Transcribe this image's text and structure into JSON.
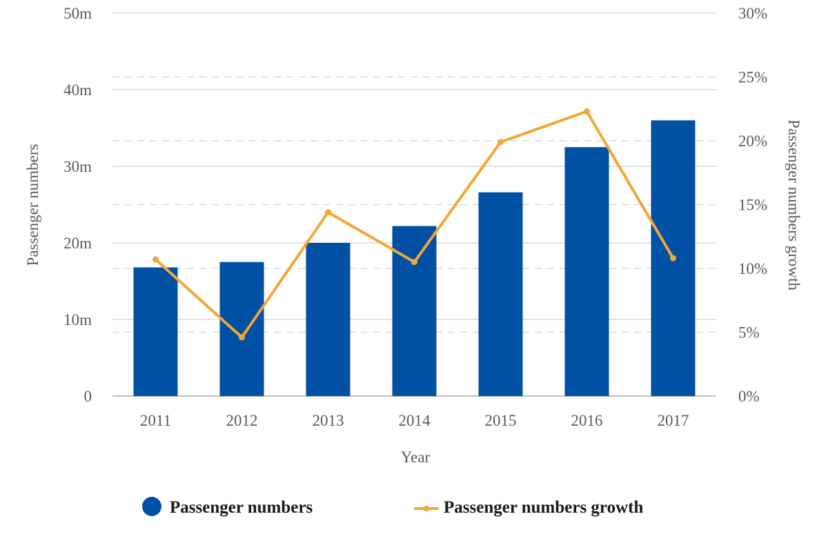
{
  "colors": {
    "bar": "#0050a4",
    "line": "#f5a533",
    "grid_solid": "#d9d9d9",
    "grid_dashed": "#d9d9d9",
    "axis": "#bfbfbf",
    "text": "#595959"
  },
  "chart_data": {
    "type": "bar",
    "categories": [
      "2011",
      "2012",
      "2013",
      "2014",
      "2015",
      "2016",
      "2017"
    ],
    "xlabel": "Year",
    "ylabel": "Passenger numbers",
    "y2label": "Passenger numbers growth",
    "ylim": [
      0,
      50
    ],
    "y2lim": [
      0,
      30
    ],
    "yticks": [
      "0",
      "10m",
      "20m",
      "30m",
      "40m",
      "50m"
    ],
    "y2ticks": [
      "0%",
      "5%",
      "10%",
      "15%",
      "20%",
      "25%",
      "30%"
    ],
    "series": [
      {
        "name": "Passenger numbers",
        "type": "bar",
        "axis": "left",
        "values": [
          16.8,
          17.5,
          20.0,
          22.2,
          26.6,
          32.5,
          36.0
        ]
      },
      {
        "name": "Passenger numbers growth",
        "type": "line",
        "axis": "right",
        "values": [
          10.7,
          4.6,
          14.4,
          10.5,
          19.9,
          22.3,
          10.8
        ]
      }
    ],
    "grid": true,
    "legend": "bottom"
  }
}
